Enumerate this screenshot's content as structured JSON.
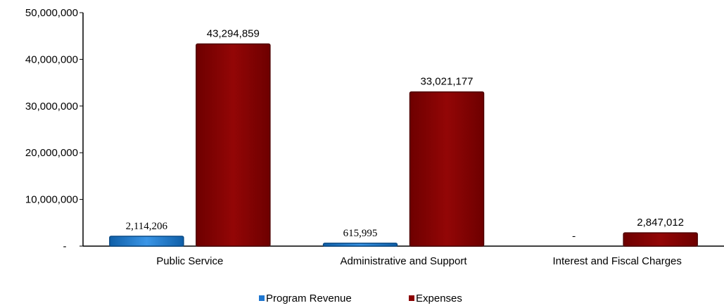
{
  "chart_data": {
    "type": "bar",
    "categories": [
      "Public Service",
      "Administrative and Support",
      "Interest and Fiscal Charges"
    ],
    "series": [
      {
        "name": "Program Revenue",
        "values": [
          2114206,
          615995,
          0
        ],
        "labels": [
          "2,114,206",
          "615,995",
          "-"
        ],
        "color": "#1f77d0"
      },
      {
        "name": "Expenses",
        "values": [
          43294859,
          33021177,
          2847012
        ],
        "labels": [
          "43,294,859",
          "33,021,177",
          "2,847,012"
        ],
        "color": "#8b0000"
      }
    ],
    "y_ticks": [
      {
        "value": 50000000,
        "label": "50,000,000"
      },
      {
        "value": 40000000,
        "label": "40,000,000"
      },
      {
        "value": 30000000,
        "label": "30,000,000"
      },
      {
        "value": 20000000,
        "label": "20,000,000"
      },
      {
        "value": 10000000,
        "label": "10,000,000"
      },
      {
        "value": 0,
        "label": "-"
      }
    ],
    "ylim": [
      0,
      50000000
    ],
    "grid": false,
    "legend_position": "bottom"
  }
}
